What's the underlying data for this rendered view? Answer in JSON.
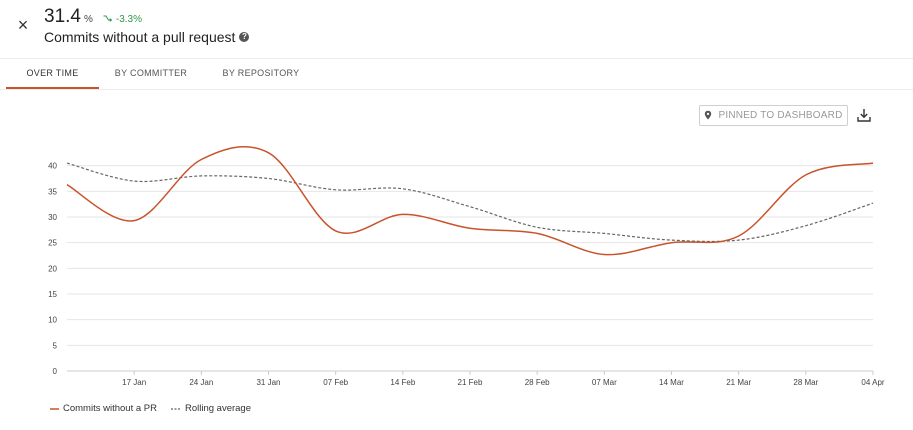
{
  "header": {
    "close_label": "×",
    "metric_value": "31.4",
    "metric_unit": "%",
    "trend_value": "-3.3%",
    "title": "Commits without a pull request"
  },
  "tabs": [
    {
      "label": "OVER TIME",
      "active": true
    },
    {
      "label": "BY COMMITTER",
      "active": false
    },
    {
      "label": "BY REPOSITORY",
      "active": false
    }
  ],
  "toolbar": {
    "pin_label": "PINNED TO DASHBOARD"
  },
  "colors": {
    "series": "#c8532a",
    "rolling": "#666666",
    "trend": "#2e9a48",
    "grid": "#e6e6e6"
  },
  "chart_data": {
    "type": "line",
    "x": [
      "2022-01-10",
      "2022-01-17",
      "2022-01-24",
      "2022-01-31",
      "2022-02-07",
      "2022-02-14",
      "2022-02-21",
      "2022-02-28",
      "2022-03-07",
      "2022-03-14",
      "2022-03-21",
      "2022-03-28",
      "2022-04-04"
    ],
    "x_tick_labels": [
      "17 Jan",
      "24 Jan",
      "31 Jan",
      "07 Feb",
      "14 Feb",
      "21 Feb",
      "28 Feb",
      "07 Mar",
      "14 Mar",
      "21 Mar",
      "28 Mar",
      "04 Apr"
    ],
    "y_ticks": [
      0,
      5,
      10,
      15,
      20,
      25,
      30,
      35,
      40
    ],
    "ylim": [
      0,
      45
    ],
    "series": [
      {
        "name": "Commits without a PR",
        "values": [
          36.3,
          29.3,
          41.2,
          42.5,
          27.3,
          30.5,
          27.8,
          26.8,
          22.7,
          25.0,
          26.3,
          38.2,
          40.5
        ]
      },
      {
        "name": "Rolling average",
        "values": [
          40.5,
          37.0,
          38.0,
          37.5,
          35.3,
          35.5,
          32.0,
          28.0,
          26.8,
          25.5,
          25.5,
          28.3,
          32.7
        ]
      }
    ],
    "grid": true,
    "legend_position": "bottom-left"
  }
}
